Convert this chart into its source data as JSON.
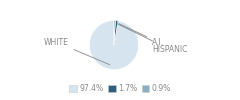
{
  "slices": [
    97.4,
    1.7,
    0.9
  ],
  "labels": [
    "WHITE",
    "A.I.",
    "HISPANIC"
  ],
  "colors": [
    "#d6e4f0",
    "#2e5f7e",
    "#8aafc2"
  ],
  "legend_labels": [
    "97.4%",
    "1.7%",
    "0.9%"
  ],
  "background_color": "#ffffff",
  "text_color": "#888888",
  "font_size": 5.5,
  "startangle": 90
}
